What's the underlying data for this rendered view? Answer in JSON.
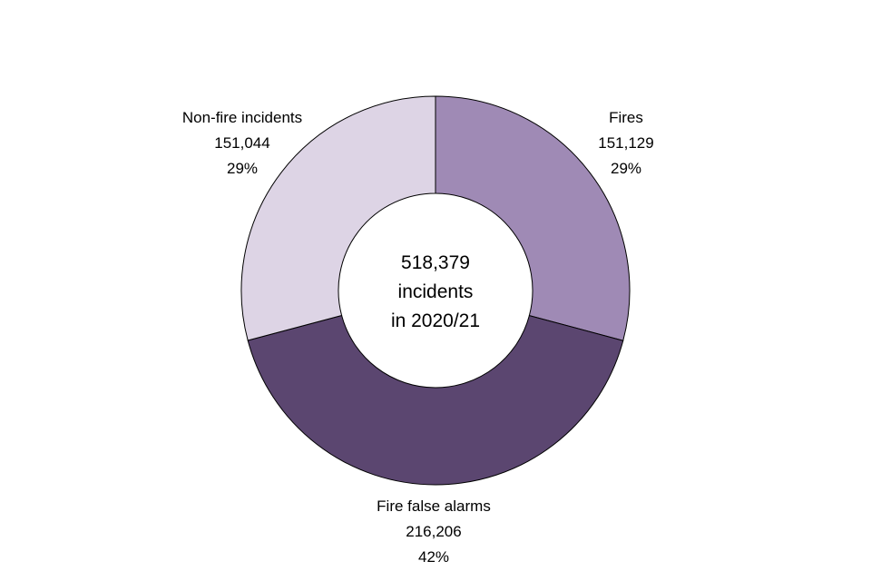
{
  "chart_data": {
    "type": "pie",
    "variant": "donut",
    "start_angle": "12 o'clock, clockwise",
    "center_label": {
      "line1": "518,379",
      "line2": "incidents",
      "line3": "in 2020/21"
    },
    "total": 518379,
    "slices": [
      {
        "name": "Fires",
        "value": 151129,
        "value_label": "151,129",
        "percent_label": "29%",
        "color": "#9f8ab5"
      },
      {
        "name": "Fire false alarms",
        "value": 216206,
        "value_label": "216,206",
        "percent_label": "42%",
        "color": "#5b4670"
      },
      {
        "name": "Non-fire incidents",
        "value": 151044,
        "value_label": "151,044",
        "percent_label": "29%",
        "color": "#ddd4e5"
      }
    ]
  }
}
